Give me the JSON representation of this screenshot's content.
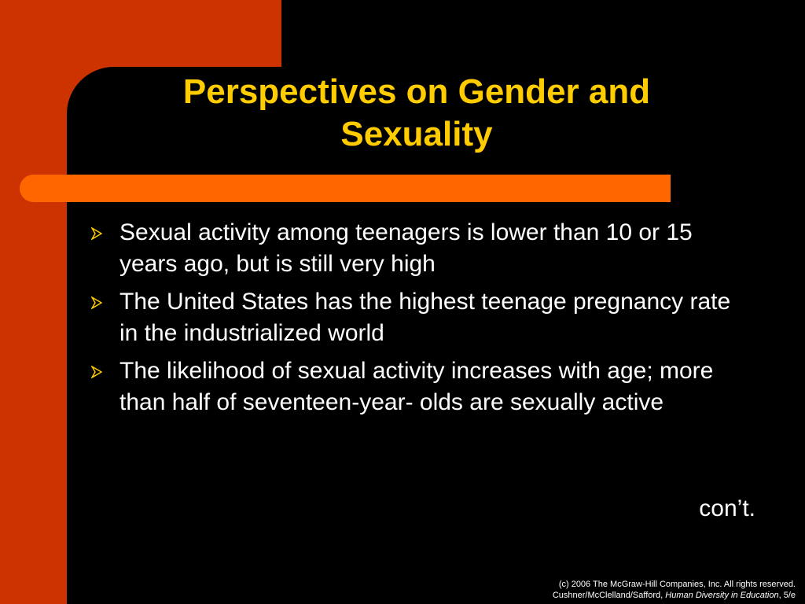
{
  "header": {
    "title": "Perspectives on Gender and Sexuality"
  },
  "bullets": [
    "Sexual activity among teenagers is lower than 10 or 15 years ago, but is still very high",
    "The United States has the highest teenage pregnancy rate in the industrialized world",
    "The likelihood of sexual activity increases with age; more than half of seventeen-year- olds are sexually active"
  ],
  "continued": "con’t.",
  "footer": {
    "line1": "(c) 2006 The McGraw-Hill Companies, Inc.  All rights reserved.",
    "line2": {
      "authors": "Cushner/McClelland/Safford, ",
      "book": "Human Diversity in Education",
      "edition": ", 5/e"
    }
  }
}
